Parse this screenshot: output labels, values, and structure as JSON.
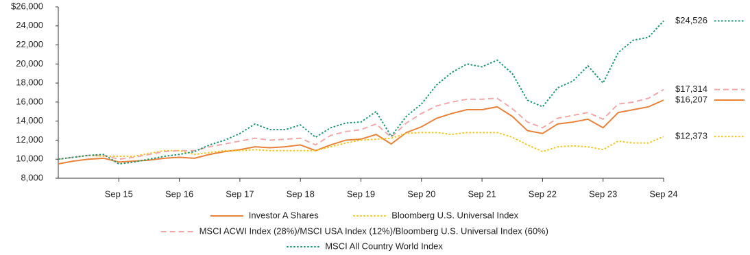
{
  "chart_data": {
    "type": "line",
    "categories": [
      null,
      null,
      null,
      null,
      "Sep 15",
      null,
      null,
      null,
      "Sep 16",
      null,
      null,
      null,
      "Sep 17",
      null,
      null,
      null,
      "Sep 18",
      null,
      null,
      null,
      "Sep 19",
      null,
      null,
      null,
      "Sep 20",
      null,
      null,
      null,
      "Sep 21",
      null,
      null,
      null,
      "Sep 22",
      null,
      null,
      null,
      "Sep 23",
      null,
      null,
      null,
      "Sep 24"
    ],
    "ylim": [
      8000,
      26000
    ],
    "yticks": [
      {
        "value": 8000,
        "label": "8,000"
      },
      {
        "value": 10000,
        "label": "10,000"
      },
      {
        "value": 12000,
        "label": "12,000"
      },
      {
        "value": 14000,
        "label": "14,000"
      },
      {
        "value": 16000,
        "label": "16,000"
      },
      {
        "value": 18000,
        "label": "18,000"
      },
      {
        "value": 20000,
        "label": "20,000"
      },
      {
        "value": 22000,
        "label": "22,000"
      },
      {
        "value": 24000,
        "label": "24,000"
      },
      {
        "value": 26000,
        "label": "$26,000"
      }
    ],
    "grid": false,
    "series": [
      {
        "name": "Investor A Shares",
        "color": "#e8823a",
        "style": "solid",
        "values": [
          9500,
          9800,
          10000,
          10100,
          9700,
          9800,
          9900,
          10100,
          10200,
          10100,
          10500,
          10800,
          11000,
          11300,
          11200,
          11300,
          11500,
          10900,
          11500,
          12000,
          12100,
          12600,
          11600,
          12800,
          13400,
          14300,
          14800,
          15200,
          15200,
          15500,
          14500,
          13000,
          12700,
          13700,
          13900,
          14200,
          13300,
          14900,
          15200,
          15500,
          16207
        ],
        "value_labels": [
          null,
          null,
          null,
          null,
          null,
          null,
          null,
          null,
          null,
          null,
          null,
          null,
          null,
          null,
          null,
          null,
          null,
          null,
          null,
          null,
          null,
          null,
          null,
          null,
          null,
          null,
          null,
          null,
          null,
          null,
          null,
          null,
          null,
          null,
          null,
          null,
          null,
          null,
          null,
          null,
          "$16,207"
        ]
      },
      {
        "name": "Bloomberg U.S. Universal Index",
        "color": "#f5c518",
        "style": "dotted",
        "values": [
          10000,
          10200,
          10400,
          10300,
          10300,
          10300,
          10600,
          10900,
          10900,
          10500,
          10700,
          10900,
          10900,
          11000,
          10900,
          10900,
          10900,
          10900,
          11300,
          11700,
          12000,
          12100,
          12200,
          12700,
          12800,
          12800,
          12600,
          12800,
          12800,
          12800,
          12300,
          11500,
          10800,
          11300,
          11400,
          11300,
          11000,
          11900,
          11700,
          11700,
          12373
        ],
        "value_labels": [
          null,
          null,
          null,
          null,
          null,
          null,
          null,
          null,
          null,
          null,
          null,
          null,
          null,
          null,
          null,
          null,
          null,
          null,
          null,
          null,
          null,
          null,
          null,
          null,
          null,
          null,
          null,
          null,
          null,
          null,
          null,
          null,
          null,
          null,
          null,
          null,
          null,
          null,
          null,
          null,
          "$12,373"
        ]
      },
      {
        "name": "MSCI ACWI Index (28%)/MSCI USA Index (12%)/Bloomberg U.S. Universal Index (60%)",
        "color": "#f0a8a8",
        "style": "dashed",
        "values": [
          10000,
          10200,
          10400,
          10400,
          10000,
          10200,
          10500,
          10800,
          10900,
          10900,
          11300,
          11600,
          11900,
          12200,
          12000,
          12100,
          12200,
          11500,
          12500,
          12900,
          13100,
          13700,
          12300,
          13800,
          14800,
          15600,
          16000,
          16300,
          16300,
          16400,
          15300,
          13900,
          13300,
          14300,
          14600,
          14900,
          14200,
          15800,
          16000,
          16400,
          17314
        ],
        "value_labels": [
          null,
          null,
          null,
          null,
          null,
          null,
          null,
          null,
          null,
          null,
          null,
          null,
          null,
          null,
          null,
          null,
          null,
          null,
          null,
          null,
          null,
          null,
          null,
          null,
          null,
          null,
          null,
          null,
          null,
          null,
          null,
          null,
          null,
          null,
          null,
          null,
          null,
          null,
          null,
          null,
          "$17,314"
        ]
      },
      {
        "name": "MSCI All Country World Index",
        "color": "#1a9a6c",
        "style": "dotted",
        "values": [
          10000,
          10200,
          10400,
          10500,
          9500,
          9700,
          10000,
          10300,
          10500,
          10800,
          11500,
          12000,
          12700,
          13700,
          13100,
          13100,
          13600,
          12300,
          13300,
          13800,
          13900,
          15000,
          12400,
          14500,
          15800,
          17800,
          19100,
          20000,
          19700,
          20400,
          19000,
          16200,
          15500,
          17500,
          18200,
          19800,
          18000,
          21200,
          22500,
          22800,
          24526
        ],
        "value_labels": [
          null,
          null,
          null,
          null,
          null,
          null,
          null,
          null,
          null,
          null,
          null,
          null,
          null,
          null,
          null,
          null,
          null,
          null,
          null,
          null,
          null,
          null,
          null,
          null,
          null,
          null,
          null,
          null,
          null,
          null,
          null,
          null,
          null,
          null,
          null,
          null,
          null,
          null,
          null,
          null,
          "$24,526"
        ]
      }
    ]
  }
}
